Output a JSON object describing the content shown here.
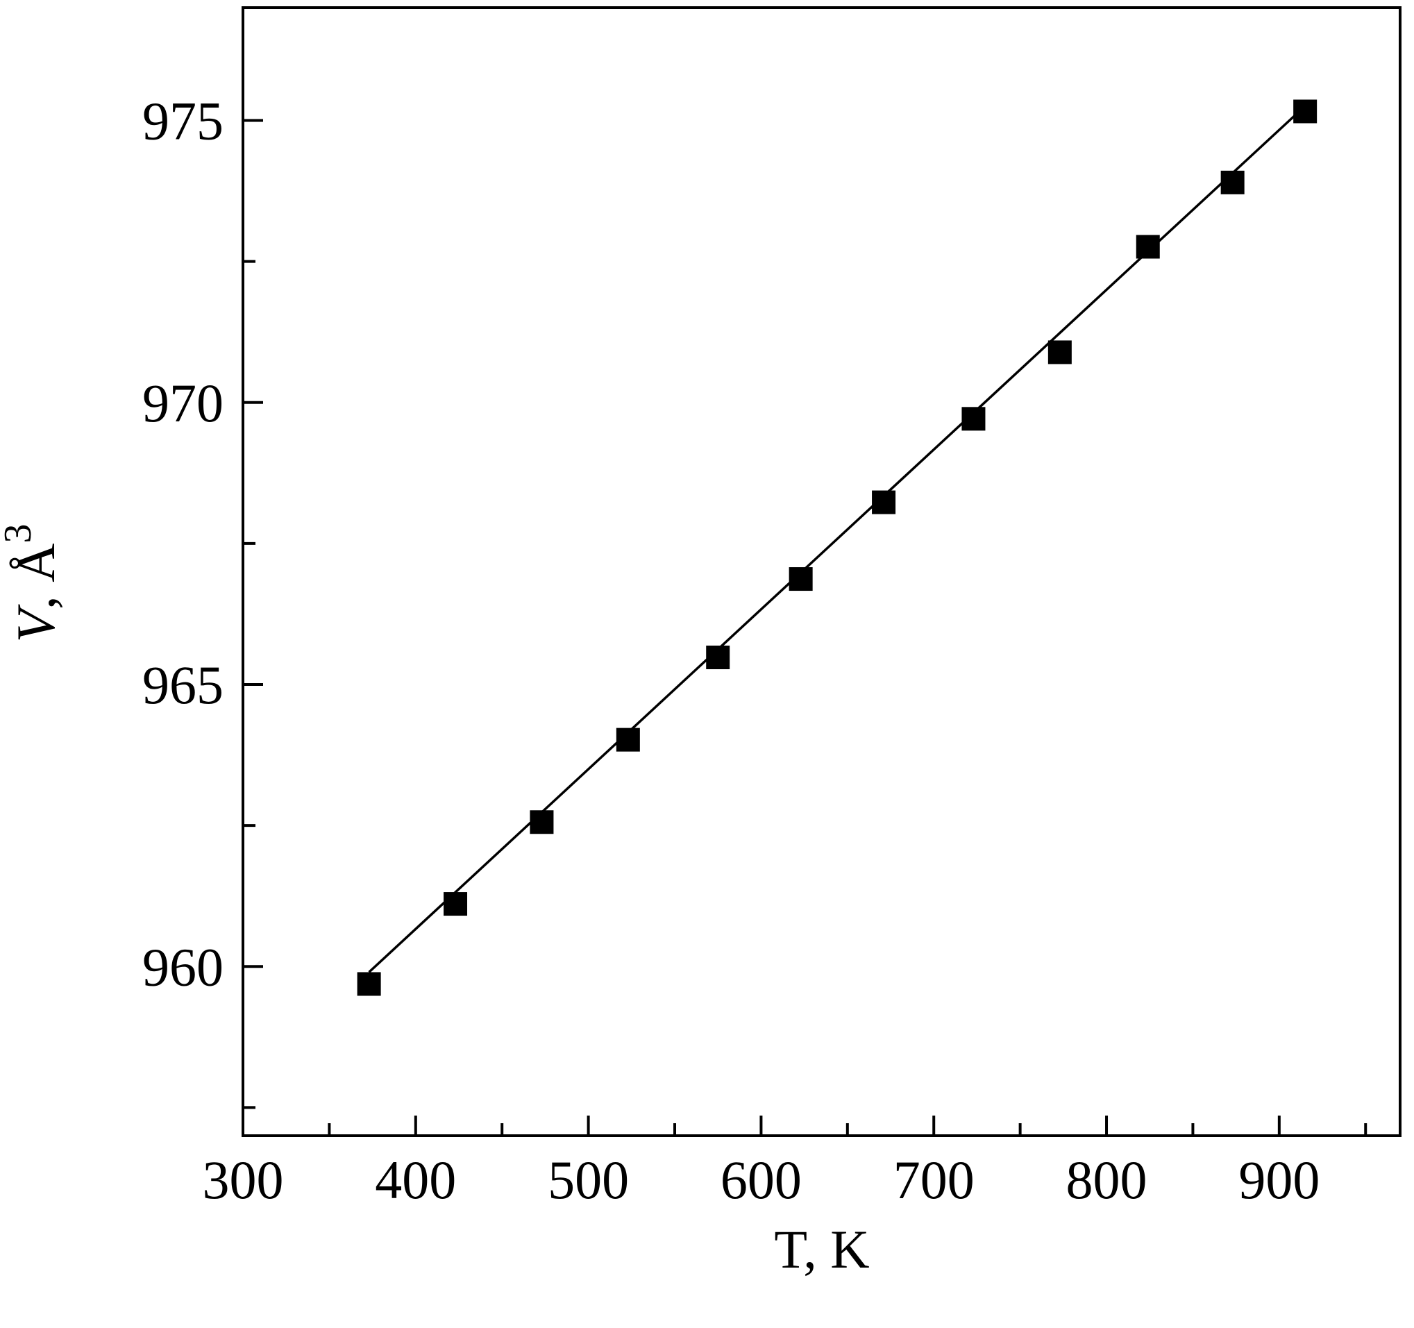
{
  "chart_data": {
    "type": "scatter",
    "xlabel": "T, K",
    "ylabel": [
      "V",
      ", Å",
      "3"
    ],
    "xlim": [
      300,
      970
    ],
    "ylim": [
      957,
      977
    ],
    "xticks": [
      300,
      400,
      500,
      600,
      700,
      800,
      900
    ],
    "xminorticks": [
      350,
      450,
      550,
      650,
      750,
      850,
      950
    ],
    "yticks": [
      960,
      965,
      970,
      975
    ],
    "yminorticks": [
      957.5,
      962.5,
      967.5,
      972.5
    ],
    "series": [
      {
        "color": "#000000",
        "marker": "square",
        "x": [
          373,
          423,
          473,
          523,
          575,
          623,
          671,
          723,
          773,
          824,
          873,
          915
        ],
        "values": [
          959.69,
          961.11,
          962.56,
          964.02,
          965.48,
          966.87,
          968.23,
          969.71,
          970.89,
          972.76,
          973.9,
          975.16
        ]
      }
    ],
    "fit_line": {
      "color": "#000000",
      "x": [
        373,
        913
      ],
      "values": [
        959.9,
        975.2
      ]
    }
  }
}
